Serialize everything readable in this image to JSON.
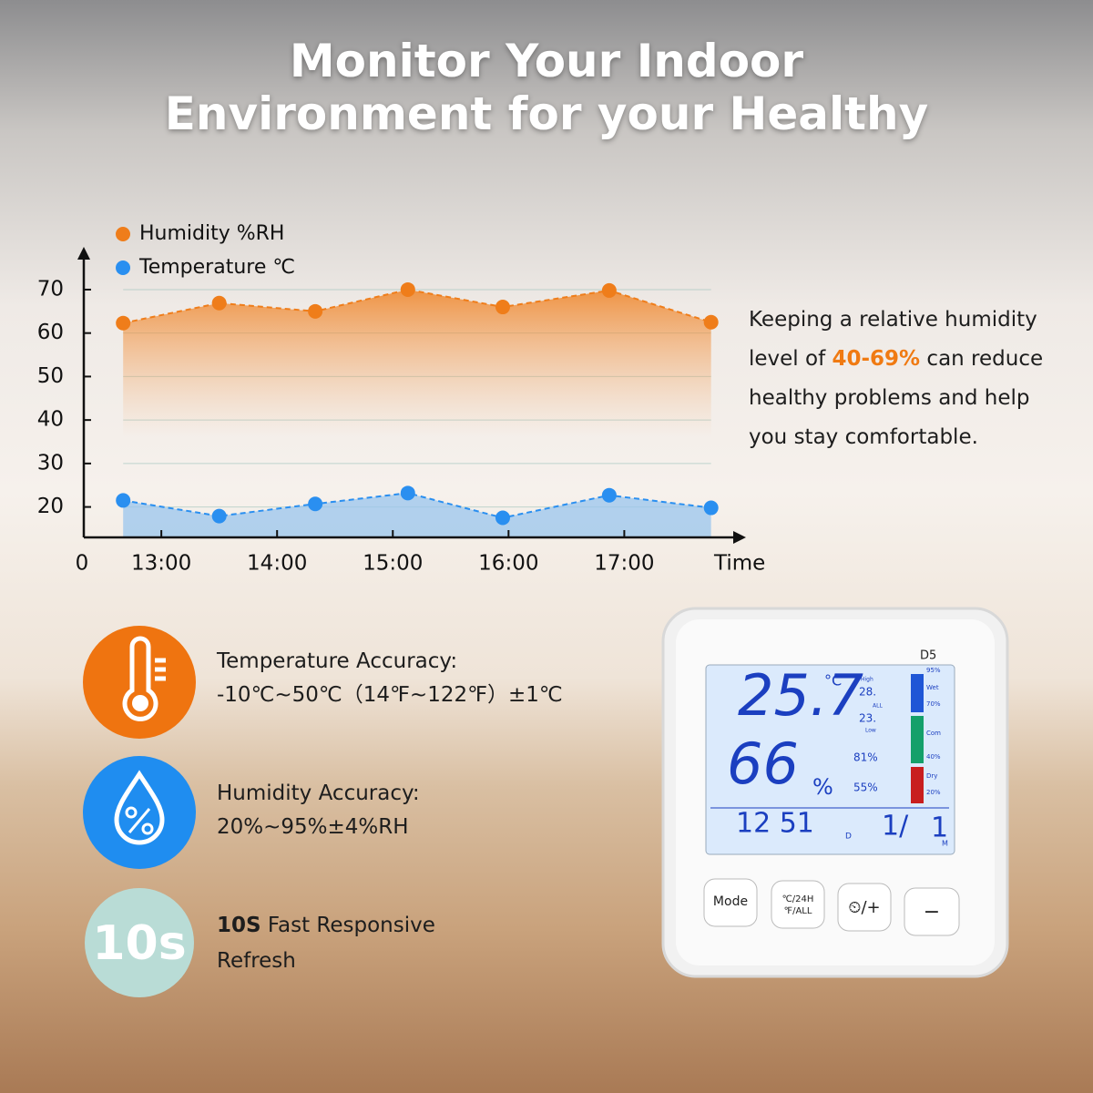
{
  "header": {
    "title_line1": "Monitor Your Indoor",
    "title_line2": "Environment for your Healthy"
  },
  "chart_data": {
    "type": "line",
    "x": [
      12.67,
      13.5,
      14.33,
      15.13,
      15.95,
      16.87,
      17.75
    ],
    "series": [
      {
        "name": "Humidity %RH",
        "color": "#ef7d1a",
        "values": [
          62.3,
          66.9,
          65,
          70,
          66,
          69.8,
          62.5
        ]
      },
      {
        "name": "Temperature ℃",
        "color": "#2a8ff0",
        "values": [
          21.5,
          17.9,
          20.7,
          23.2,
          17.5,
          22.7,
          19.8
        ]
      }
    ],
    "xlim": [
      12.33,
      18.02
    ],
    "xticks": [
      {
        "value": 13,
        "label": "13:00"
      },
      {
        "value": 14,
        "label": "14:00"
      },
      {
        "value": 15,
        "label": "15:00"
      },
      {
        "value": 16,
        "label": "16:00"
      },
      {
        "value": 17,
        "label": "17:00"
      }
    ],
    "ylim": [
      13,
      79
    ],
    "yticks": [
      20,
      30,
      40,
      50,
      60,
      70
    ],
    "origin_label": "0",
    "xlabel": "Time",
    "grid": true
  },
  "note": {
    "line1": "Keeping a relative humidity",
    "line2a": "level of",
    "line2b": "40-69%",
    "line2c": "can reduce",
    "line3": "healthy problems and help",
    "line4": "you stay comfortable."
  },
  "features": [
    {
      "title": "Temperature Accuracy:",
      "detail": "-10℃~50℃（14℉~122℉）±1℃"
    },
    {
      "title": "Humidity Accuracy:",
      "detail": "20%~95%±4%RH"
    },
    {
      "badge": "10s",
      "bold": "10S",
      "title": "Fast Responsive",
      "detail": "Refresh"
    }
  ],
  "device": {
    "model": "D5",
    "temp": "25.7",
    "temp_unit": "°C",
    "humidity": "66",
    "humidity_unit": "%",
    "high": "High",
    "low": "Low",
    "all": "ALL",
    "temp_high": "28.",
    "temp_low": "23.",
    "hum_high": "81%",
    "hum_low": "55%",
    "clock": "12 51",
    "d": "D",
    "date1": "1/",
    "date2": "1",
    "m": "M",
    "scale": [
      "95%",
      "Wet",
      "70%",
      "Com",
      "40%",
      "Dry",
      "20%"
    ],
    "buttons": [
      "Mode",
      "℃/24H",
      "℉/ALL",
      "⏲/+",
      "−"
    ]
  }
}
